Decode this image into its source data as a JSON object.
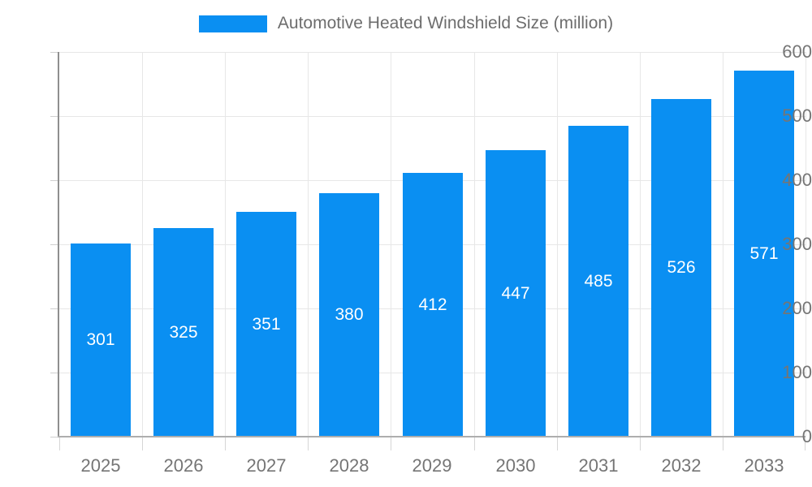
{
  "chart_data": {
    "type": "bar",
    "title": "Automotive Heated Windshield Size (million)",
    "categories": [
      "2025",
      "2026",
      "2027",
      "2028",
      "2029",
      "2030",
      "2031",
      "2032",
      "2033"
    ],
    "values": [
      301,
      325,
      351,
      380,
      412,
      447,
      485,
      526,
      571
    ],
    "xlabel": "",
    "ylabel": "",
    "ylim": [
      0,
      600
    ],
    "yticks": [
      0,
      100,
      200,
      300,
      400,
      500,
      600
    ],
    "grid": true,
    "legend_position": "top-center",
    "bar_color": "#0a8ff2",
    "bar_value_label_color": "#ffffff",
    "axis_text_color": "#757575",
    "legend_text_color": "#6d6d6d",
    "gridline_color": "#e7e7e7",
    "axis_line_color": "#8f8f8f"
  }
}
